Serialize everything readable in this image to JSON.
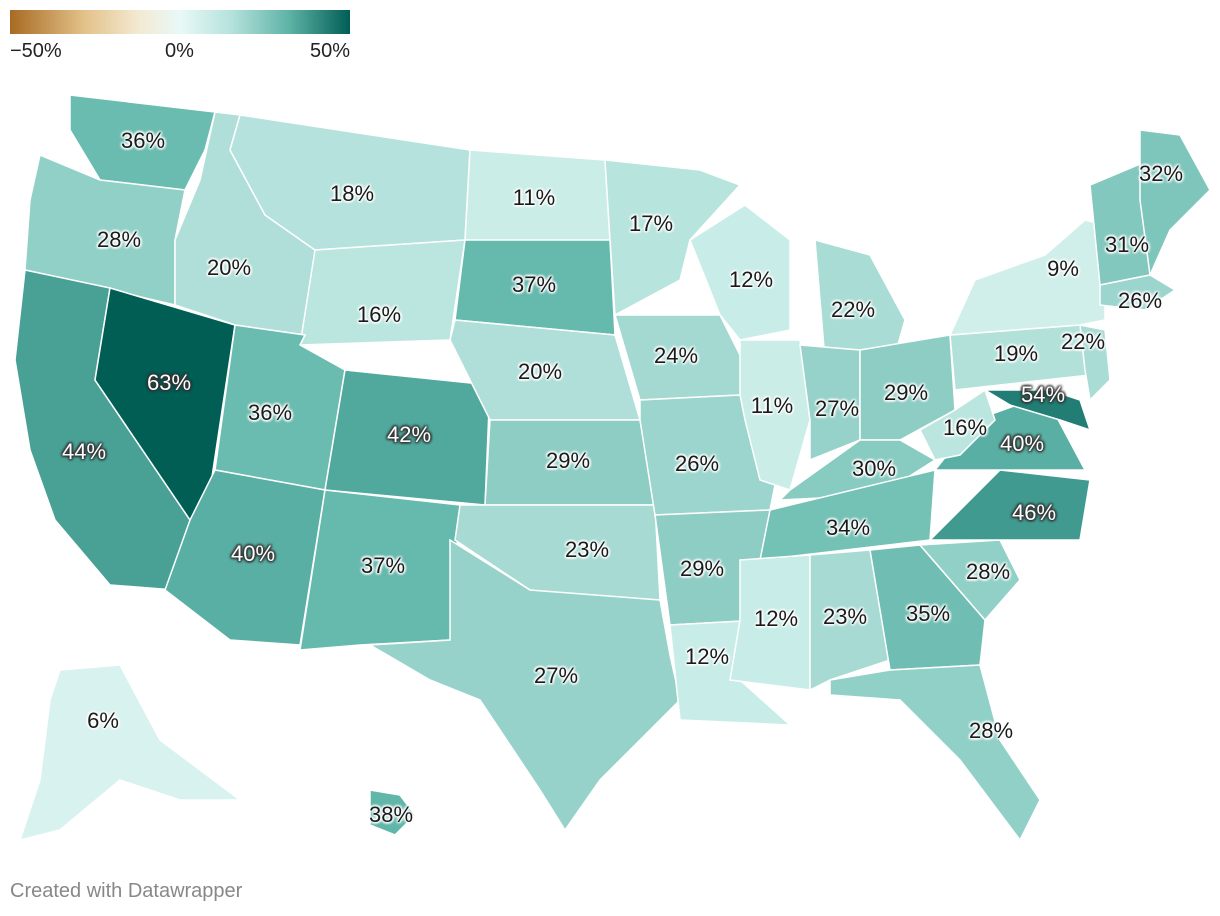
{
  "legend": {
    "min_label": "−50%",
    "mid_label": "0%",
    "max_label": "50%",
    "colors": [
      "#a86a22",
      "#e3c28a",
      "#e8f9f7",
      "#5fb3a7",
      "#005e55"
    ]
  },
  "footer": {
    "credit": "Created with Datawrapper"
  },
  "chart_data": {
    "type": "choropleth",
    "regions": [
      {
        "state": "WA",
        "value": 36,
        "label": "36%"
      },
      {
        "state": "OR",
        "value": 28,
        "label": "28%"
      },
      {
        "state": "CA",
        "value": 44,
        "label": "44%"
      },
      {
        "state": "NV",
        "value": 63,
        "label": "63%"
      },
      {
        "state": "ID",
        "value": 20,
        "label": "20%"
      },
      {
        "state": "MT",
        "value": 18,
        "label": "18%"
      },
      {
        "state": "WY",
        "value": 16,
        "label": "16%"
      },
      {
        "state": "UT",
        "value": 36,
        "label": "36%"
      },
      {
        "state": "AZ",
        "value": 40,
        "label": "40%"
      },
      {
        "state": "CO",
        "value": 42,
        "label": "42%"
      },
      {
        "state": "NM",
        "value": 37,
        "label": "37%"
      },
      {
        "state": "ND",
        "value": 11,
        "label": "11%"
      },
      {
        "state": "SD",
        "value": 37,
        "label": "37%"
      },
      {
        "state": "NE",
        "value": 20,
        "label": "20%"
      },
      {
        "state": "KS",
        "value": 29,
        "label": "29%"
      },
      {
        "state": "OK",
        "value": 23,
        "label": "23%"
      },
      {
        "state": "TX",
        "value": 27,
        "label": "27%"
      },
      {
        "state": "MN",
        "value": 17,
        "label": "17%"
      },
      {
        "state": "IA",
        "value": 24,
        "label": "24%"
      },
      {
        "state": "MO",
        "value": 26,
        "label": "26%"
      },
      {
        "state": "AR",
        "value": 29,
        "label": "29%"
      },
      {
        "state": "LA",
        "value": 12,
        "label": "12%"
      },
      {
        "state": "WI",
        "value": 12,
        "label": "12%"
      },
      {
        "state": "IL",
        "value": 11,
        "label": "11%"
      },
      {
        "state": "MI",
        "value": 22,
        "label": "22%"
      },
      {
        "state": "IN",
        "value": 27,
        "label": "27%"
      },
      {
        "state": "OH",
        "value": 29,
        "label": "29%"
      },
      {
        "state": "KY",
        "value": 30,
        "label": "30%"
      },
      {
        "state": "TN",
        "value": 34,
        "label": "34%"
      },
      {
        "state": "MS",
        "value": 12,
        "label": "12%"
      },
      {
        "state": "AL",
        "value": 23,
        "label": "23%"
      },
      {
        "state": "GA",
        "value": 35,
        "label": "35%"
      },
      {
        "state": "FL",
        "value": 28,
        "label": "28%"
      },
      {
        "state": "SC",
        "value": 28,
        "label": "28%"
      },
      {
        "state": "NC",
        "value": 46,
        "label": "46%"
      },
      {
        "state": "VA",
        "value": 40,
        "label": "40%"
      },
      {
        "state": "WV",
        "value": 16,
        "label": "16%"
      },
      {
        "state": "MD",
        "value": 54,
        "label": "54%"
      },
      {
        "state": "PA",
        "value": 19,
        "label": "19%"
      },
      {
        "state": "NJ",
        "value": 22,
        "label": "22%"
      },
      {
        "state": "NY",
        "value": 9,
        "label": "9%"
      },
      {
        "state": "VT-NH",
        "value": 31,
        "label": "31%"
      },
      {
        "state": "ME",
        "value": 32,
        "label": "32%"
      },
      {
        "state": "MA",
        "value": 26,
        "label": "26%"
      },
      {
        "state": "AK",
        "value": 6,
        "label": "6%"
      },
      {
        "state": "HI",
        "value": 38,
        "label": "38%"
      }
    ],
    "scale": {
      "min": -50,
      "max": 50
    }
  }
}
